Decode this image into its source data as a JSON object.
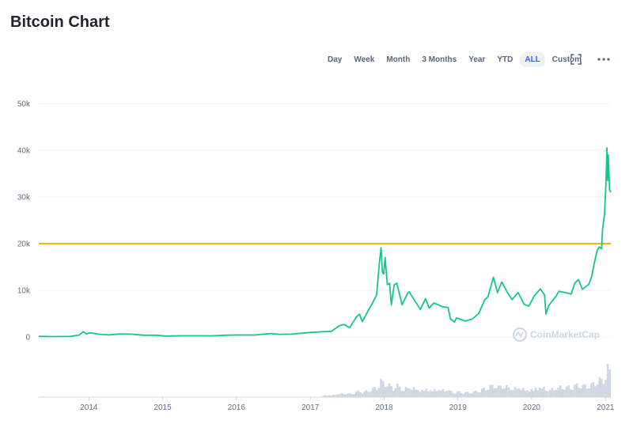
{
  "page": {
    "title": "Bitcoin Chart"
  },
  "range_buttons": [
    {
      "label": "Day",
      "active": false
    },
    {
      "label": "Week",
      "active": false
    },
    {
      "label": "Month",
      "active": false
    },
    {
      "label": "3 Months",
      "active": false
    },
    {
      "label": "Year",
      "active": false
    },
    {
      "label": "YTD",
      "active": false
    },
    {
      "label": "ALL",
      "active": true
    },
    {
      "label": "Custom",
      "active": false
    }
  ],
  "toolbar": {
    "fullscreen_icon": "fullscreen-icon",
    "more_icon": "more-dots-icon"
  },
  "watermark": {
    "text": "CoinMarketCap"
  },
  "colors": {
    "price_line": "#16c784",
    "reference_line": "#f7b500",
    "grid": "#eff2f5",
    "volume": "#cfd6e4",
    "active_range": "#3861fb"
  },
  "chart_data": {
    "type": "line",
    "title": "",
    "xlabel": "",
    "ylabel": "",
    "x_range": [
      "2013-04-28",
      "2021-01-27"
    ],
    "ylim": [
      0,
      50000
    ],
    "y_ticks": [
      {
        "value": 0,
        "label": "0"
      },
      {
        "value": 10000,
        "label": "10k"
      },
      {
        "value": 20000,
        "label": "20k"
      },
      {
        "value": 30000,
        "label": "30k"
      },
      {
        "value": 40000,
        "label": "40k"
      },
      {
        "value": 50000,
        "label": "50k"
      }
    ],
    "x_ticks": [
      {
        "date": "2014-01-01",
        "label": "2014"
      },
      {
        "date": "2015-01-01",
        "label": "2015"
      },
      {
        "date": "2016-01-01",
        "label": "2016"
      },
      {
        "date": "2017-01-01",
        "label": "2017"
      },
      {
        "date": "2018-01-01",
        "label": "2018"
      },
      {
        "date": "2019-01-01",
        "label": "2019"
      },
      {
        "date": "2020-01-01",
        "label": "2020"
      },
      {
        "date": "2021-01-01",
        "label": "2021"
      }
    ],
    "grid": true,
    "reference_line": {
      "value": 20000
    },
    "series": [
      {
        "points": [
          [
            "2013-04-28",
            135
          ],
          [
            "2013-07-01",
            90
          ],
          [
            "2013-10-01",
            125
          ],
          [
            "2013-11-15",
            420
          ],
          [
            "2013-12-04",
            1150
          ],
          [
            "2013-12-20",
            650
          ],
          [
            "2014-01-05",
            920
          ],
          [
            "2014-02-20",
            600
          ],
          [
            "2014-04-10",
            440
          ],
          [
            "2014-06-01",
            640
          ],
          [
            "2014-08-01",
            590
          ],
          [
            "2014-10-01",
            380
          ],
          [
            "2014-12-01",
            370
          ],
          [
            "2015-01-15",
            210
          ],
          [
            "2015-04-01",
            250
          ],
          [
            "2015-07-01",
            260
          ],
          [
            "2015-09-01",
            230
          ],
          [
            "2015-11-05",
            380
          ],
          [
            "2016-01-01",
            430
          ],
          [
            "2016-04-01",
            420
          ],
          [
            "2016-06-18",
            750
          ],
          [
            "2016-08-01",
            580
          ],
          [
            "2016-10-01",
            610
          ],
          [
            "2016-12-31",
            960
          ],
          [
            "2017-02-20",
            1100
          ],
          [
            "2017-04-15",
            1200
          ],
          [
            "2017-05-25",
            2400
          ],
          [
            "2017-06-15",
            2700
          ],
          [
            "2017-07-15",
            2000
          ],
          [
            "2017-08-15",
            4200
          ],
          [
            "2017-09-01",
            4900
          ],
          [
            "2017-09-15",
            3300
          ],
          [
            "2017-10-15",
            5700
          ],
          [
            "2017-11-01",
            7000
          ],
          [
            "2017-11-25",
            9000
          ],
          [
            "2017-12-10",
            16500
          ],
          [
            "2017-12-17",
            19100
          ],
          [
            "2017-12-23",
            14000
          ],
          [
            "2017-12-30",
            13500
          ],
          [
            "2018-01-06",
            17000
          ],
          [
            "2018-01-17",
            11200
          ],
          [
            "2018-01-28",
            11500
          ],
          [
            "2018-02-06",
            6900
          ],
          [
            "2018-02-20",
            11200
          ],
          [
            "2018-03-05",
            11500
          ],
          [
            "2018-03-31",
            6900
          ],
          [
            "2018-04-25",
            9200
          ],
          [
            "2018-05-05",
            9700
          ],
          [
            "2018-06-29",
            5900
          ],
          [
            "2018-07-25",
            8200
          ],
          [
            "2018-08-12",
            6200
          ],
          [
            "2018-09-05",
            7300
          ],
          [
            "2018-10-15",
            6500
          ],
          [
            "2018-11-14",
            6300
          ],
          [
            "2018-11-25",
            3900
          ],
          [
            "2018-12-15",
            3200
          ],
          [
            "2018-12-25",
            4100
          ],
          [
            "2019-02-07",
            3400
          ],
          [
            "2019-03-15",
            3900
          ],
          [
            "2019-04-15",
            5100
          ],
          [
            "2019-05-14",
            8000
          ],
          [
            "2019-05-30",
            8600
          ],
          [
            "2019-06-26",
            12800
          ],
          [
            "2019-07-16",
            9500
          ],
          [
            "2019-08-06",
            11800
          ],
          [
            "2019-09-01",
            9700
          ],
          [
            "2019-09-26",
            8000
          ],
          [
            "2019-10-26",
            9500
          ],
          [
            "2019-11-25",
            7000
          ],
          [
            "2019-12-18",
            6600
          ],
          [
            "2020-01-14",
            8800
          ],
          [
            "2020-02-13",
            10300
          ],
          [
            "2020-03-05",
            9000
          ],
          [
            "2020-03-12",
            4900
          ],
          [
            "2020-03-25",
            6700
          ],
          [
            "2020-04-30",
            8700
          ],
          [
            "2020-05-15",
            9800
          ],
          [
            "2020-06-15",
            9500
          ],
          [
            "2020-07-15",
            9200
          ],
          [
            "2020-08-01",
            11500
          ],
          [
            "2020-08-20",
            12300
          ],
          [
            "2020-09-08",
            10200
          ],
          [
            "2020-10-10",
            11300
          ],
          [
            "2020-10-25",
            13100
          ],
          [
            "2020-11-05",
            15600
          ],
          [
            "2020-11-20",
            18500
          ],
          [
            "2020-12-01",
            19300
          ],
          [
            "2020-12-12",
            18900
          ],
          [
            "2020-12-17",
            23000
          ],
          [
            "2020-12-27",
            26500
          ],
          [
            "2021-01-02",
            32000
          ],
          [
            "2021-01-08",
            40500
          ],
          [
            "2021-01-11",
            33500
          ],
          [
            "2021-01-14",
            39000
          ],
          [
            "2021-01-21",
            31500
          ],
          [
            "2021-01-27",
            31000
          ]
        ]
      }
    ]
  }
}
